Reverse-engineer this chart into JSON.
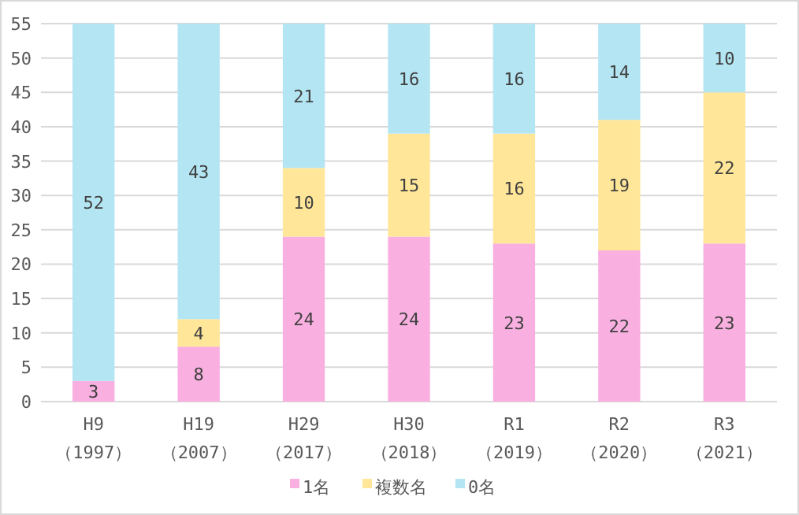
{
  "chart_data": {
    "type": "bar",
    "stacked": true,
    "categories": [
      "H9\n（1997）",
      "H19\n（2007）",
      "H29\n（2017）",
      "H30\n（2018）",
      "R1\n（2019）",
      "R2\n（2020）",
      "R3\n（2021）"
    ],
    "series": [
      {
        "name": "1名",
        "color": "#f9b0e0",
        "values": [
          3,
          8,
          24,
          24,
          23,
          22,
          23
        ],
        "value_labels": [
          "3",
          "8",
          "24",
          "24",
          "23",
          "22",
          "23"
        ]
      },
      {
        "name": "複数名",
        "color": "#ffe699",
        "values": [
          0,
          4,
          10,
          15,
          16,
          19,
          22
        ],
        "value_labels": [
          null,
          "4",
          "10",
          "15",
          "16",
          "19",
          "22"
        ]
      },
      {
        "name": "0名",
        "color": "#b4e5f3",
        "values": [
          52,
          43,
          21,
          16,
          16,
          14,
          10
        ],
        "value_labels": [
          "52",
          "43",
          "21",
          "16",
          "16",
          "14",
          "10"
        ]
      }
    ],
    "ylim": [
      0,
      55
    ],
    "yticks": [
      0,
      5,
      10,
      15,
      20,
      25,
      30,
      35,
      40,
      45,
      50,
      55
    ],
    "grid": "y",
    "legend": "bottom"
  }
}
